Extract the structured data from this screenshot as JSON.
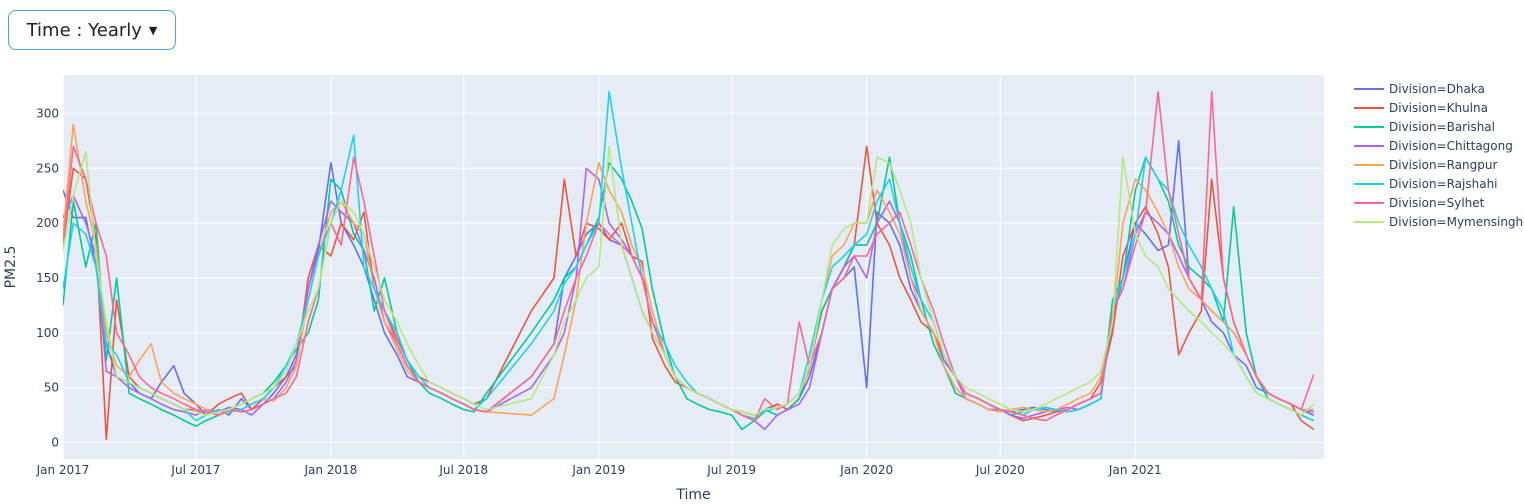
{
  "dropdown": {
    "label": "Time : Yearly"
  },
  "chart_data": {
    "type": "line",
    "xlabel": "Time",
    "ylabel": "PM2.5",
    "xlim": [
      "2017-01-01",
      "2021-09-15"
    ],
    "ylim": [
      -15,
      335
    ],
    "x_ticks": [
      {
        "date": "2017-01-01",
        "label": "Jan 2017"
      },
      {
        "date": "2017-07-01",
        "label": "Jul 2017"
      },
      {
        "date": "2018-01-01",
        "label": "Jan 2018"
      },
      {
        "date": "2018-07-01",
        "label": "Jul 2018"
      },
      {
        "date": "2019-01-01",
        "label": "Jan 2019"
      },
      {
        "date": "2019-07-01",
        "label": "Jul 2019"
      },
      {
        "date": "2020-01-01",
        "label": "Jan 2020"
      },
      {
        "date": "2020-07-01",
        "label": "Jul 2020"
      },
      {
        "date": "2021-01-01",
        "label": "Jan 2021"
      }
    ],
    "y_ticks": [
      0,
      50,
      100,
      150,
      200,
      250,
      300
    ],
    "grid": true,
    "legend_position": "right",
    "x": [
      "2017-01-01",
      "2017-01-15",
      "2017-02-01",
      "2017-02-15",
      "2017-03-01",
      "2017-03-15",
      "2017-04-01",
      "2017-04-15",
      "2017-05-01",
      "2017-05-15",
      "2017-06-01",
      "2017-06-15",
      "2017-07-01",
      "2017-07-15",
      "2017-08-01",
      "2017-08-15",
      "2017-09-01",
      "2017-09-15",
      "2017-10-01",
      "2017-10-15",
      "2017-11-01",
      "2017-11-15",
      "2017-12-01",
      "2017-12-15",
      "2018-01-01",
      "2018-01-15",
      "2018-02-01",
      "2018-02-15",
      "2018-03-01",
      "2018-03-15",
      "2018-04-01",
      "2018-04-15",
      "2018-05-01",
      "2018-05-15",
      "2018-06-01",
      "2018-06-15",
      "2018-07-01",
      "2018-07-15",
      "2018-08-01",
      "2018-10-01",
      "2018-11-01",
      "2018-11-15",
      "2018-12-01",
      "2018-12-15",
      "2019-01-01",
      "2019-01-15",
      "2019-02-01",
      "2019-02-15",
      "2019-03-01",
      "2019-03-15",
      "2019-04-01",
      "2019-04-15",
      "2019-05-01",
      "2019-05-15",
      "2019-06-01",
      "2019-06-15",
      "2019-07-01",
      "2019-07-15",
      "2019-08-01",
      "2019-08-15",
      "2019-09-01",
      "2019-09-15",
      "2019-10-01",
      "2019-10-15",
      "2019-11-01",
      "2019-11-15",
      "2019-12-01",
      "2019-12-15",
      "2020-01-01",
      "2020-01-15",
      "2020-02-01",
      "2020-02-15",
      "2020-03-01",
      "2020-03-15",
      "2020-04-01",
      "2020-04-15",
      "2020-05-01",
      "2020-05-15",
      "2020-06-01",
      "2020-06-15",
      "2020-07-01",
      "2020-07-15",
      "2020-08-01",
      "2020-08-15",
      "2020-09-01",
      "2020-09-15",
      "2020-10-01",
      "2020-10-15",
      "2020-11-01",
      "2020-11-15",
      "2020-12-01",
      "2020-12-15",
      "2021-01-01",
      "2021-01-15",
      "2021-02-01",
      "2021-02-15",
      "2021-03-01",
      "2021-03-15",
      "2021-04-01",
      "2021-04-15",
      "2021-05-01",
      "2021-05-15",
      "2021-06-01",
      "2021-06-15",
      "2021-07-01",
      "2021-07-15",
      "2021-08-01",
      "2021-08-15",
      "2021-09-01"
    ],
    "series": [
      {
        "name": "Division=Dhaka",
        "color": "#636efa",
        "values": [
          230,
          205,
          205,
          160,
          90,
          60,
          55,
          45,
          40,
          55,
          70,
          45,
          35,
          25,
          30,
          25,
          40,
          30,
          35,
          45,
          60,
          80,
          140,
          175,
          255,
          200,
          180,
          160,
          130,
          100,
          80,
          60,
          55,
          50,
          45,
          40,
          35,
          30,
          28,
          60,
          90,
          150,
          170,
          190,
          200,
          185,
          180,
          150,
          120,
          100,
          80,
          60,
          50,
          45,
          40,
          35,
          30,
          28,
          25,
          30,
          35,
          30,
          40,
          60,
          100,
          140,
          150,
          160,
          50,
          210,
          200,
          180,
          140,
          120,
          100,
          75,
          60,
          45,
          40,
          35,
          30,
          28,
          30,
          32,
          30,
          28,
          30,
          35,
          40,
          45,
          110,
          150,
          200,
          190,
          175,
          180,
          275,
          150,
          130,
          110,
          100,
          80,
          70,
          50,
          45,
          40,
          35,
          30,
          25
        ]
      },
      {
        "name": "Division=Khulna",
        "color": "#ef553b",
        "values": [
          180,
          250,
          240,
          185,
          3,
          130,
          60,
          50,
          45,
          40,
          35,
          30,
          30,
          25,
          35,
          40,
          45,
          30,
          40,
          50,
          60,
          70,
          150,
          180,
          170,
          200,
          185,
          210,
          140,
          120,
          95,
          75,
          60,
          55,
          50,
          45,
          40,
          35,
          40,
          120,
          150,
          240,
          170,
          200,
          195,
          185,
          200,
          170,
          165,
          95,
          70,
          55,
          50,
          45,
          40,
          35,
          30,
          25,
          20,
          28,
          35,
          30,
          40,
          70,
          120,
          140,
          160,
          180,
          270,
          200,
          180,
          150,
          130,
          110,
          100,
          80,
          60,
          45,
          40,
          35,
          30,
          25,
          20,
          22,
          25,
          28,
          30,
          35,
          40,
          55,
          100,
          170,
          200,
          215,
          190,
          160,
          80,
          100,
          120,
          240,
          150,
          110,
          80,
          60,
          45,
          40,
          35,
          20,
          12
        ]
      },
      {
        "name": "Division=Barishal",
        "color": "#00cc96",
        "values": [
          125,
          220,
          160,
          200,
          75,
          150,
          45,
          40,
          35,
          30,
          25,
          20,
          15,
          20,
          25,
          30,
          35,
          40,
          45,
          55,
          70,
          85,
          100,
          130,
          240,
          230,
          190,
          175,
          120,
          150,
          100,
          75,
          55,
          45,
          40,
          35,
          30,
          28,
          45,
          100,
          130,
          150,
          160,
          180,
          205,
          255,
          240,
          220,
          195,
          140,
          90,
          60,
          40,
          35,
          30,
          28,
          25,
          12,
          20,
          30,
          25,
          30,
          40,
          70,
          120,
          140,
          160,
          180,
          180,
          200,
          260,
          200,
          170,
          130,
          90,
          70,
          45,
          40,
          35,
          30,
          30,
          25,
          28,
          30,
          32,
          30,
          28,
          30,
          35,
          40,
          130,
          150,
          230,
          260,
          240,
          220,
          180,
          160,
          150,
          140,
          110,
          215,
          100,
          60,
          40,
          35,
          30,
          25,
          20
        ]
      },
      {
        "name": "Division=Chittagong",
        "color": "#ab63fa",
        "values": [
          205,
          225,
          200,
          170,
          65,
          60,
          50,
          45,
          40,
          35,
          30,
          28,
          25,
          30,
          28,
          32,
          30,
          25,
          35,
          40,
          55,
          75,
          140,
          180,
          220,
          210,
          200,
          175,
          150,
          110,
          90,
          70,
          55,
          50,
          45,
          40,
          35,
          30,
          28,
          50,
          80,
          100,
          150,
          250,
          240,
          200,
          185,
          170,
          150,
          110,
          80,
          60,
          50,
          45,
          40,
          35,
          30,
          25,
          20,
          12,
          25,
          30,
          35,
          50,
          100,
          140,
          160,
          170,
          150,
          200,
          220,
          200,
          150,
          130,
          110,
          80,
          60,
          40,
          35,
          30,
          30,
          25,
          22,
          25,
          28,
          30,
          32,
          30,
          35,
          40,
          120,
          140,
          190,
          210,
          200,
          190,
          170,
          150,
          130,
          120,
          110,
          100,
          80,
          60,
          45,
          40,
          35,
          30,
          28
        ]
      },
      {
        "name": "Division=Rangpur",
        "color": "#ffa15a",
        "values": [
          190,
          290,
          220,
          180,
          100,
          70,
          60,
          75,
          90,
          55,
          45,
          40,
          35,
          30,
          25,
          28,
          30,
          35,
          40,
          38,
          50,
          70,
          130,
          170,
          210,
          220,
          200,
          190,
          140,
          110,
          85,
          65,
          55,
          50,
          45,
          40,
          35,
          30,
          28,
          25,
          40,
          80,
          130,
          200,
          255,
          230,
          210,
          180,
          160,
          120,
          80,
          60,
          50,
          45,
          40,
          35,
          30,
          28,
          25,
          30,
          32,
          35,
          45,
          65,
          130,
          170,
          180,
          200,
          200,
          230,
          210,
          190,
          150,
          120,
          100,
          70,
          50,
          40,
          35,
          30,
          28,
          30,
          32,
          30,
          28,
          30,
          35,
          40,
          45,
          60,
          110,
          200,
          240,
          230,
          210,
          190,
          160,
          140,
          130,
          120,
          110,
          100,
          80,
          60,
          45,
          40,
          35,
          30,
          30
        ]
      },
      {
        "name": "Division=Rajshahi",
        "color": "#19d3f3",
        "values": [
          140,
          200,
          190,
          160,
          90,
          80,
          55,
          50,
          45,
          40,
          35,
          30,
          20,
          25,
          30,
          28,
          30,
          35,
          40,
          50,
          70,
          90,
          130,
          170,
          200,
          230,
          280,
          160,
          140,
          120,
          100,
          75,
          60,
          50,
          45,
          40,
          35,
          30,
          40,
          90,
          120,
          145,
          160,
          180,
          200,
          320,
          250,
          200,
          150,
          110,
          90,
          70,
          55,
          45,
          40,
          35,
          30,
          25,
          22,
          28,
          32,
          35,
          45,
          80,
          130,
          160,
          170,
          180,
          190,
          220,
          240,
          200,
          160,
          130,
          110,
          80,
          60,
          45,
          40,
          35,
          30,
          28,
          25,
          30,
          32,
          30,
          28,
          30,
          35,
          40,
          120,
          150,
          190,
          260,
          240,
          230,
          200,
          180,
          160,
          140,
          120,
          80,
          60,
          45,
          40,
          35,
          30,
          25,
          20
        ]
      },
      {
        "name": "Division=Sylhet",
        "color": "#ff6692",
        "values": [
          180,
          270,
          240,
          200,
          170,
          100,
          80,
          60,
          50,
          45,
          40,
          35,
          30,
          28,
          25,
          30,
          28,
          30,
          35,
          40,
          45,
          60,
          110,
          140,
          200,
          180,
          260,
          220,
          170,
          120,
          90,
          70,
          55,
          50,
          45,
          40,
          35,
          30,
          28,
          60,
          90,
          120,
          150,
          170,
          200,
          190,
          180,
          170,
          150,
          110,
          80,
          60,
          50,
          45,
          40,
          35,
          30,
          25,
          20,
          40,
          30,
          35,
          110,
          70,
          100,
          140,
          150,
          170,
          170,
          190,
          200,
          210,
          180,
          150,
          120,
          90,
          60,
          45,
          40,
          35,
          30,
          28,
          25,
          22,
          20,
          25,
          30,
          35,
          40,
          45,
          120,
          140,
          180,
          210,
          320,
          230,
          190,
          150,
          130,
          320,
          150,
          110,
          80,
          60,
          45,
          40,
          35,
          30,
          62
        ]
      },
      {
        "name": "Division=Mymensingh",
        "color": "#b6e880",
        "values": [
          175,
          225,
          265,
          170,
          110,
          60,
          55,
          50,
          45,
          40,
          35,
          30,
          28,
          25,
          28,
          30,
          35,
          40,
          45,
          50,
          65,
          90,
          120,
          140,
          200,
          220,
          210,
          190,
          160,
          130,
          110,
          90,
          70,
          55,
          50,
          45,
          40,
          35,
          30,
          40,
          80,
          110,
          130,
          150,
          160,
          270,
          180,
          150,
          120,
          100,
          80,
          60,
          50,
          45,
          40,
          35,
          30,
          28,
          25,
          30,
          32,
          35,
          45,
          70,
          130,
          180,
          195,
          200,
          200,
          260,
          255,
          230,
          200,
          150,
          110,
          80,
          60,
          50,
          45,
          40,
          35,
          30,
          28,
          30,
          35,
          40,
          45,
          50,
          55,
          65,
          110,
          260,
          190,
          170,
          160,
          140,
          130,
          120,
          110,
          100,
          90,
          80,
          60,
          45,
          40,
          35,
          30,
          25,
          35
        ]
      }
    ]
  }
}
